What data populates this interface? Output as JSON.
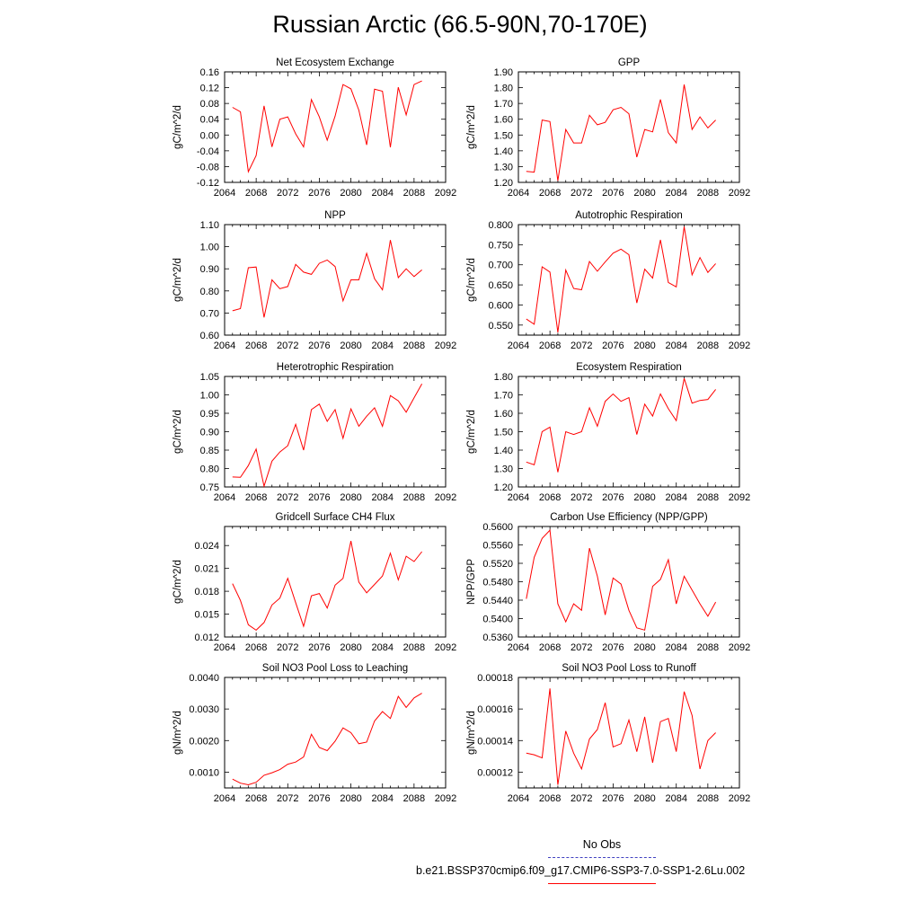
{
  "page": {
    "title": "Russian Arctic (66.5-90N,70-170E)"
  },
  "legend": {
    "obs_label": "No Obs",
    "obs_color": "#4040c0",
    "run_label": "b.e21.BSSP370cmip6.f09_g17.CMIP6-SSP3-7.0-SSP1-2.6Lu.002",
    "run_color": "#ff0000"
  },
  "chart_data": [
    {
      "type": "line",
      "title": "Net Ecosystem Exchange",
      "ylabel": "gC/m^2/d",
      "xlim": [
        2064,
        2092
      ],
      "xticks": [
        2064,
        2068,
        2072,
        2076,
        2080,
        2084,
        2088,
        2092
      ],
      "ylim": [
        -0.12,
        0.16
      ],
      "yticks": [
        -0.12,
        -0.08,
        -0.04,
        0.0,
        0.04,
        0.08,
        0.12,
        0.16
      ],
      "ytick_labels": [
        "-0.12",
        "-0.08",
        "-0.04",
        "0.00",
        "0.04",
        "0.08",
        "0.12",
        "0.16"
      ],
      "x": [
        2065,
        2066,
        2067,
        2068,
        2069,
        2070,
        2071,
        2072,
        2073,
        2074,
        2075,
        2076,
        2077,
        2078,
        2079,
        2080,
        2081,
        2082,
        2083,
        2084,
        2085,
        2086,
        2087,
        2088,
        2089
      ],
      "series": [
        {
          "color": "#ff0000",
          "values": [
            0.07,
            0.059,
            -0.093,
            -0.052,
            0.074,
            -0.03,
            0.04,
            0.046,
            0.003,
            -0.03,
            0.09,
            0.046,
            -0.013,
            0.048,
            0.128,
            0.117,
            0.063,
            -0.025,
            0.116,
            0.111,
            -0.031,
            0.121,
            0.051,
            0.128,
            0.137
          ]
        }
      ]
    },
    {
      "type": "line",
      "title": "GPP",
      "ylabel": "gC/m^2/d",
      "xlim": [
        2064,
        2092
      ],
      "xticks": [
        2064,
        2068,
        2072,
        2076,
        2080,
        2084,
        2088,
        2092
      ],
      "ylim": [
        1.2,
        1.9
      ],
      "yticks": [
        1.2,
        1.3,
        1.4,
        1.5,
        1.6,
        1.7,
        1.8,
        1.9
      ],
      "ytick_labels": [
        "1.20",
        "1.30",
        "1.40",
        "1.50",
        "1.60",
        "1.70",
        "1.80",
        "1.90"
      ],
      "x": [
        2065,
        2066,
        2067,
        2068,
        2069,
        2070,
        2071,
        2072,
        2073,
        2074,
        2075,
        2076,
        2077,
        2078,
        2079,
        2080,
        2081,
        2082,
        2083,
        2084,
        2085,
        2086,
        2087,
        2088,
        2089
      ],
      "series": [
        {
          "color": "#ff0000",
          "values": [
            1.27,
            1.265,
            1.595,
            1.585,
            1.21,
            1.535,
            1.45,
            1.45,
            1.625,
            1.565,
            1.58,
            1.66,
            1.675,
            1.635,
            1.36,
            1.535,
            1.52,
            1.725,
            1.515,
            1.45,
            1.82,
            1.535,
            1.615,
            1.545,
            1.595
          ]
        }
      ]
    },
    {
      "type": "line",
      "title": "NPP",
      "ylabel": "gC/m^2/d",
      "xlim": [
        2064,
        2092
      ],
      "xticks": [
        2064,
        2068,
        2072,
        2076,
        2080,
        2084,
        2088,
        2092
      ],
      "ylim": [
        0.6,
        1.1
      ],
      "yticks": [
        0.6,
        0.7,
        0.8,
        0.9,
        1.0,
        1.1
      ],
      "ytick_labels": [
        "0.60",
        "0.70",
        "0.80",
        "0.90",
        "1.00",
        "1.10"
      ],
      "x": [
        2065,
        2066,
        2067,
        2068,
        2069,
        2070,
        2071,
        2072,
        2073,
        2074,
        2075,
        2076,
        2077,
        2078,
        2079,
        2080,
        2081,
        2082,
        2083,
        2084,
        2085,
        2086,
        2087,
        2088,
        2089
      ],
      "series": [
        {
          "color": "#ff0000",
          "values": [
            0.71,
            0.72,
            0.905,
            0.908,
            0.68,
            0.85,
            0.81,
            0.82,
            0.92,
            0.885,
            0.875,
            0.925,
            0.94,
            0.91,
            0.755,
            0.85,
            0.85,
            0.97,
            0.855,
            0.805,
            1.03,
            0.86,
            0.9,
            0.865,
            0.895
          ]
        }
      ]
    },
    {
      "type": "line",
      "title": "Autotrophic Respiration",
      "ylabel": "gC/m^2/d",
      "xlim": [
        2064,
        2092
      ],
      "xticks": [
        2064,
        2068,
        2072,
        2076,
        2080,
        2084,
        2088,
        2092
      ],
      "ylim": [
        0.525,
        0.8
      ],
      "yticks": [
        0.55,
        0.6,
        0.65,
        0.7,
        0.75,
        0.8
      ],
      "ytick_labels": [
        "0.550",
        "0.600",
        "0.650",
        "0.700",
        "0.750",
        "0.800"
      ],
      "x": [
        2065,
        2066,
        2067,
        2068,
        2069,
        2070,
        2071,
        2072,
        2073,
        2074,
        2075,
        2076,
        2077,
        2078,
        2079,
        2080,
        2081,
        2082,
        2083,
        2084,
        2085,
        2086,
        2087,
        2088,
        2089
      ],
      "series": [
        {
          "color": "#ff0000",
          "values": [
            0.565,
            0.552,
            0.695,
            0.682,
            0.532,
            0.687,
            0.641,
            0.638,
            0.708,
            0.684,
            0.707,
            0.729,
            0.739,
            0.725,
            0.605,
            0.689,
            0.667,
            0.762,
            0.656,
            0.645,
            0.795,
            0.675,
            0.718,
            0.681,
            0.703
          ]
        }
      ]
    },
    {
      "type": "line",
      "title": "Heterotrophic Respiration",
      "ylabel": "gC/m^2/d",
      "xlim": [
        2064,
        2092
      ],
      "xticks": [
        2064,
        2068,
        2072,
        2076,
        2080,
        2084,
        2088,
        2092
      ],
      "ylim": [
        0.75,
        1.05
      ],
      "yticks": [
        0.75,
        0.8,
        0.85,
        0.9,
        0.95,
        1.0,
        1.05
      ],
      "ytick_labels": [
        "0.75",
        "0.80",
        "0.85",
        "0.90",
        "0.95",
        "1.00",
        "1.05"
      ],
      "x": [
        2065,
        2066,
        2067,
        2068,
        2069,
        2070,
        2071,
        2072,
        2073,
        2074,
        2075,
        2076,
        2077,
        2078,
        2079,
        2080,
        2081,
        2082,
        2083,
        2084,
        2085,
        2086,
        2087,
        2088,
        2089
      ],
      "series": [
        {
          "color": "#ff0000",
          "values": [
            0.777,
            0.776,
            0.808,
            0.853,
            0.752,
            0.82,
            0.845,
            0.862,
            0.92,
            0.85,
            0.96,
            0.975,
            0.928,
            0.96,
            0.882,
            0.962,
            0.915,
            0.942,
            0.965,
            0.915,
            0.998,
            0.984,
            0.953,
            0.992,
            1.03
          ]
        }
      ]
    },
    {
      "type": "line",
      "title": "Ecosystem Respiration",
      "ylabel": "gC/m^2/d",
      "xlim": [
        2064,
        2092
      ],
      "xticks": [
        2064,
        2068,
        2072,
        2076,
        2080,
        2084,
        2088,
        2092
      ],
      "ylim": [
        1.2,
        1.8
      ],
      "yticks": [
        1.2,
        1.3,
        1.4,
        1.5,
        1.6,
        1.7,
        1.8
      ],
      "ytick_labels": [
        "1.20",
        "1.30",
        "1.40",
        "1.50",
        "1.60",
        "1.70",
        "1.80"
      ],
      "x": [
        2065,
        2066,
        2067,
        2068,
        2069,
        2070,
        2071,
        2072,
        2073,
        2074,
        2075,
        2076,
        2077,
        2078,
        2079,
        2080,
        2081,
        2082,
        2083,
        2084,
        2085,
        2086,
        2087,
        2088,
        2089
      ],
      "series": [
        {
          "color": "#ff0000",
          "values": [
            1.335,
            1.32,
            1.5,
            1.525,
            1.28,
            1.5,
            1.485,
            1.5,
            1.63,
            1.53,
            1.665,
            1.705,
            1.665,
            1.685,
            1.485,
            1.65,
            1.585,
            1.705,
            1.625,
            1.56,
            1.79,
            1.655,
            1.67,
            1.675,
            1.73
          ]
        }
      ]
    },
    {
      "type": "line",
      "title": "Gridcell Surface CH4 Flux",
      "ylabel": "gC/m^2/d",
      "xlim": [
        2064,
        2092
      ],
      "xticks": [
        2064,
        2068,
        2072,
        2076,
        2080,
        2084,
        2088,
        2092
      ],
      "ylim": [
        0.012,
        0.0265
      ],
      "yticks": [
        0.012,
        0.015,
        0.018,
        0.021,
        0.024
      ],
      "ytick_labels": [
        "0.012",
        "0.015",
        "0.018",
        "0.021",
        "0.024"
      ],
      "x": [
        2065,
        2066,
        2067,
        2068,
        2069,
        2070,
        2071,
        2072,
        2073,
        2074,
        2075,
        2076,
        2077,
        2078,
        2079,
        2080,
        2081,
        2082,
        2083,
        2084,
        2085,
        2086,
        2087,
        2088,
        2089
      ],
      "series": [
        {
          "color": "#ff0000",
          "values": [
            0.019,
            0.0168,
            0.0136,
            0.0129,
            0.0139,
            0.0162,
            0.0171,
            0.0197,
            0.0165,
            0.0134,
            0.0174,
            0.0177,
            0.0158,
            0.0188,
            0.0197,
            0.0246,
            0.0192,
            0.0178,
            0.0189,
            0.02,
            0.023,
            0.0195,
            0.0226,
            0.0219,
            0.0232
          ]
        }
      ]
    },
    {
      "type": "line",
      "title": "Carbon Use Efficiency (NPP/GPP)",
      "ylabel": "NPP/GPP",
      "xlim": [
        2064,
        2092
      ],
      "xticks": [
        2064,
        2068,
        2072,
        2076,
        2080,
        2084,
        2088,
        2092
      ],
      "ylim": [
        0.536,
        0.56
      ],
      "yticks": [
        0.536,
        0.54,
        0.544,
        0.548,
        0.552,
        0.556,
        0.56
      ],
      "ytick_labels": [
        "0.5360",
        "0.5400",
        "0.5440",
        "0.5480",
        "0.5520",
        "0.5560",
        "0.5600"
      ],
      "x": [
        2065,
        2066,
        2067,
        2068,
        2069,
        2070,
        2071,
        2072,
        2073,
        2074,
        2075,
        2076,
        2077,
        2078,
        2079,
        2080,
        2081,
        2082,
        2083,
        2084,
        2085,
        2086,
        2087,
        2088,
        2089
      ],
      "series": [
        {
          "color": "#ff0000",
          "values": [
            0.5443,
            0.5533,
            0.5574,
            0.5592,
            0.5432,
            0.5393,
            0.5432,
            0.5418,
            0.5553,
            0.5492,
            0.5408,
            0.5488,
            0.5475,
            0.5418,
            0.538,
            0.5375,
            0.547,
            0.5485,
            0.5528,
            0.5432,
            0.5492,
            0.5462,
            0.5432,
            0.5405,
            0.5436
          ]
        }
      ]
    },
    {
      "type": "line",
      "title": "Soil NO3 Pool Loss to Leaching",
      "ylabel": "gN/m^2/d",
      "xlim": [
        2064,
        2092
      ],
      "xticks": [
        2064,
        2068,
        2072,
        2076,
        2080,
        2084,
        2088,
        2092
      ],
      "ylim": [
        0.0005,
        0.004
      ],
      "yticks": [
        0.001,
        0.002,
        0.003,
        0.004
      ],
      "ytick_labels": [
        "0.0010",
        "0.0020",
        "0.0030",
        "0.0040"
      ],
      "x": [
        2065,
        2066,
        2067,
        2068,
        2069,
        2070,
        2071,
        2072,
        2073,
        2074,
        2075,
        2076,
        2077,
        2078,
        2079,
        2080,
        2081,
        2082,
        2083,
        2084,
        2085,
        2086,
        2087,
        2088,
        2089
      ],
      "series": [
        {
          "color": "#ff0000",
          "values": [
            0.00078,
            0.00065,
            0.0006,
            0.00068,
            0.0009,
            0.00098,
            0.00108,
            0.00125,
            0.00132,
            0.00148,
            0.0022,
            0.00178,
            0.00168,
            0.00198,
            0.0024,
            0.00225,
            0.0019,
            0.00195,
            0.00262,
            0.00292,
            0.0027,
            0.0034,
            0.00305,
            0.00335,
            0.0035
          ]
        }
      ]
    },
    {
      "type": "line",
      "title": "Soil NO3 Pool Loss to Runoff",
      "ylabel": "gN/m^2/d",
      "xlim": [
        2064,
        2092
      ],
      "xticks": [
        2064,
        2068,
        2072,
        2076,
        2080,
        2084,
        2088,
        2092
      ],
      "ylim": [
        0.00011,
        0.00018
      ],
      "yticks": [
        0.00012,
        0.00014,
        0.00016,
        0.00018
      ],
      "ytick_labels": [
        "0.00012",
        "0.00014",
        "0.00016",
        "0.00018"
      ],
      "x": [
        2065,
        2066,
        2067,
        2068,
        2069,
        2070,
        2071,
        2072,
        2073,
        2074,
        2075,
        2076,
        2077,
        2078,
        2079,
        2080,
        2081,
        2082,
        2083,
        2084,
        2085,
        2086,
        2087,
        2088,
        2089
      ],
      "series": [
        {
          "color": "#ff0000",
          "values": [
            0.000132,
            0.000131,
            0.000129,
            0.000173,
            0.000112,
            0.000146,
            0.000132,
            0.000122,
            0.000141,
            0.000147,
            0.000164,
            0.000136,
            0.000138,
            0.000153,
            0.000133,
            0.000155,
            0.000126,
            0.000152,
            0.000154,
            0.000133,
            0.000171,
            0.000156,
            0.000122,
            0.00014,
            0.000145
          ]
        }
      ]
    }
  ]
}
